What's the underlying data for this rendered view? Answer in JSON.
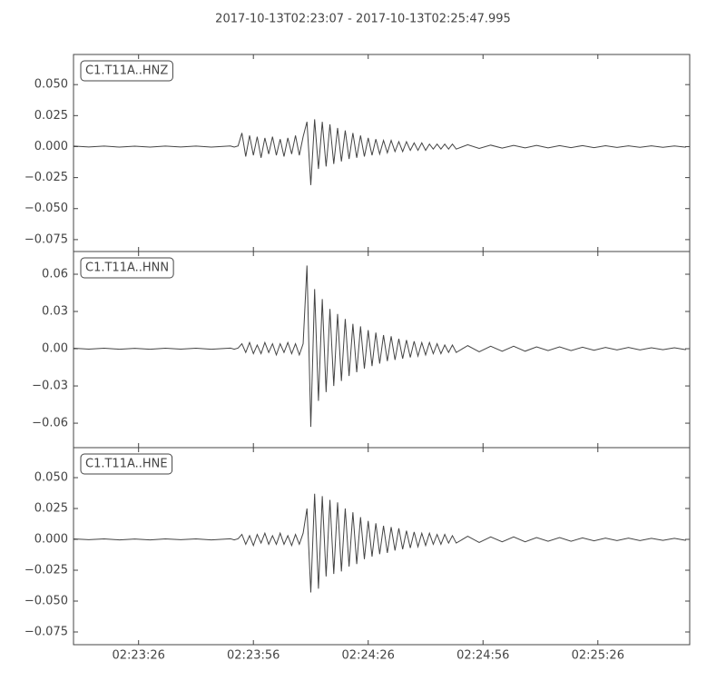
{
  "chart_data": {
    "type": "line",
    "title": "2017-10-13T02:23:07  -  2017-10-13T02:25:47.995",
    "x": [
      0,
      4,
      8,
      12,
      16,
      20,
      24,
      28,
      32,
      36,
      40,
      41,
      42,
      43,
      44,
      45,
      46,
      47,
      48,
      49,
      50,
      51,
      52,
      53,
      54,
      55,
      56,
      57,
      58,
      59,
      60,
      61,
      62,
      63,
      64,
      65,
      66,
      67,
      68,
      69,
      70,
      71,
      72,
      73,
      74,
      75,
      76,
      77,
      78,
      79,
      80,
      81,
      82,
      83,
      84,
      85,
      86,
      87,
      88,
      89,
      90,
      91,
      92,
      93,
      94,
      95,
      96,
      97,
      98,
      99,
      100,
      103,
      106,
      109,
      112,
      115,
      118,
      121,
      124,
      127,
      130,
      133,
      136,
      139,
      142,
      145,
      148,
      151,
      154,
      157,
      160
    ],
    "xlim": [
      0,
      161
    ],
    "xticks": [
      {
        "value": 17,
        "label": "02:23:26"
      },
      {
        "value": 47,
        "label": "02:23:56"
      },
      {
        "value": 77,
        "label": "02:24:26"
      },
      {
        "value": 107,
        "label": "02:24:56"
      },
      {
        "value": 137,
        "label": "02:25:26"
      }
    ],
    "series": [
      {
        "name": "C1.T11A..HNZ",
        "color": "#444444",
        "ylim": [
          -0.0846,
          0.0743
        ],
        "yticks": [
          {
            "value": -0.075,
            "label": "−0.075"
          },
          {
            "value": -0.05,
            "label": "−0.050"
          },
          {
            "value": -0.025,
            "label": "−0.025"
          },
          {
            "value": 0,
            "label": "0.000"
          },
          {
            "value": 0.025,
            "label": "0.025"
          },
          {
            "value": 0.05,
            "label": "0.050"
          }
        ],
        "values": [
          0.0004,
          -0.0003,
          0.0004,
          -0.0004,
          0.0003,
          -0.0004,
          0.0004,
          -0.0003,
          0.0004,
          -0.0004,
          0.0003,
          0.0005,
          -0.0004,
          0.0005,
          0.011,
          -0.008,
          0.009,
          -0.007,
          0.008,
          -0.009,
          0.007,
          -0.006,
          0.008,
          -0.007,
          0.006,
          -0.008,
          0.007,
          -0.006,
          0.009,
          -0.007,
          0.008,
          0.02,
          -0.031,
          0.022,
          -0.018,
          0.02,
          -0.016,
          0.018,
          -0.014,
          0.015,
          -0.012,
          0.013,
          -0.01,
          0.011,
          -0.009,
          0.009,
          -0.008,
          0.007,
          -0.007,
          0.006,
          -0.006,
          0.005,
          -0.005,
          0.005,
          -0.004,
          0.004,
          -0.004,
          0.004,
          -0.003,
          0.003,
          -0.003,
          0.003,
          -0.003,
          0.002,
          -0.002,
          0.002,
          -0.002,
          0.002,
          -0.002,
          0.002,
          -0.002,
          0.0015,
          -0.0015,
          0.0012,
          -0.0012,
          0.001,
          -0.001,
          0.001,
          -0.001,
          0.0008,
          -0.0008,
          0.0008,
          -0.0008,
          0.0007,
          -0.0007,
          0.0006,
          -0.0006,
          0.0006,
          -0.0006,
          0.0005,
          -0.0005
        ]
      },
      {
        "name": "C1.T11A..HNN",
        "color": "#444444",
        "ylim": [
          -0.0797,
          0.0783
        ],
        "yticks": [
          {
            "value": -0.06,
            "label": "−0.06"
          },
          {
            "value": -0.03,
            "label": "−0.03"
          },
          {
            "value": 0,
            "label": "0.00"
          },
          {
            "value": 0.03,
            "label": "0.03"
          },
          {
            "value": 0.06,
            "label": "0.06"
          }
        ],
        "values": [
          0.0004,
          -0.0003,
          0.0004,
          -0.0004,
          0.0003,
          -0.0004,
          0.0004,
          -0.0003,
          0.0004,
          -0.0004,
          0.0003,
          0.0005,
          -0.0004,
          0.0005,
          0.004,
          -0.003,
          0.005,
          -0.004,
          0.003,
          -0.004,
          0.005,
          -0.003,
          0.004,
          -0.005,
          0.004,
          -0.003,
          0.005,
          -0.004,
          0.004,
          -0.005,
          0.004,
          0.067,
          -0.063,
          0.048,
          -0.042,
          0.04,
          -0.035,
          0.032,
          -0.03,
          0.028,
          -0.026,
          0.024,
          -0.022,
          0.02,
          -0.019,
          0.018,
          -0.016,
          0.015,
          -0.014,
          0.013,
          -0.012,
          0.011,
          -0.01,
          0.01,
          -0.009,
          0.008,
          -0.008,
          0.007,
          -0.007,
          0.006,
          -0.006,
          0.005,
          -0.005,
          0.005,
          -0.004,
          0.004,
          -0.004,
          0.003,
          -0.003,
          0.003,
          -0.003,
          0.0025,
          -0.0025,
          0.002,
          -0.002,
          0.002,
          -0.002,
          0.0015,
          -0.0015,
          0.0015,
          -0.0015,
          0.0012,
          -0.0012,
          0.001,
          -0.001,
          0.001,
          -0.001,
          0.0008,
          -0.0008,
          0.0008,
          -0.0008
        ]
      },
      {
        "name": "C1.T11A..HNE",
        "color": "#444444",
        "ylim": [
          -0.0853,
          0.0743
        ],
        "yticks": [
          {
            "value": -0.075,
            "label": "−0.075"
          },
          {
            "value": -0.05,
            "label": "−0.050"
          },
          {
            "value": -0.025,
            "label": "−0.025"
          },
          {
            "value": 0,
            "label": "0.000"
          },
          {
            "value": 0.025,
            "label": "0.025"
          },
          {
            "value": 0.05,
            "label": "0.050"
          }
        ],
        "values": [
          0.0004,
          -0.0003,
          0.0004,
          -0.0004,
          0.0003,
          -0.0004,
          0.0004,
          -0.0003,
          0.0004,
          -0.0004,
          0.0003,
          0.0005,
          -0.0004,
          0.0005,
          0.004,
          -0.004,
          0.003,
          -0.005,
          0.004,
          -0.003,
          0.005,
          -0.004,
          0.003,
          -0.004,
          0.005,
          -0.004,
          0.003,
          -0.005,
          0.004,
          -0.004,
          0.005,
          0.025,
          -0.043,
          0.037,
          -0.04,
          0.035,
          -0.03,
          0.032,
          -0.028,
          0.03,
          -0.026,
          0.025,
          -0.022,
          0.022,
          -0.02,
          0.018,
          -0.016,
          0.015,
          -0.014,
          0.013,
          -0.012,
          0.011,
          -0.011,
          0.01,
          -0.009,
          0.009,
          -0.008,
          0.007,
          -0.007,
          0.006,
          -0.006,
          0.005,
          -0.005,
          0.005,
          -0.004,
          0.004,
          -0.004,
          0.004,
          -0.003,
          0.003,
          -0.003,
          0.0025,
          -0.0025,
          0.002,
          -0.002,
          0.002,
          -0.002,
          0.0015,
          -0.0015,
          0.0015,
          -0.0015,
          0.0012,
          -0.0012,
          0.001,
          -0.001,
          0.001,
          -0.001,
          0.0008,
          -0.0008,
          0.0008,
          -0.0008
        ]
      }
    ]
  }
}
